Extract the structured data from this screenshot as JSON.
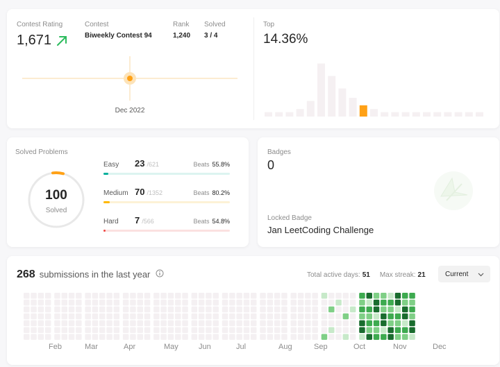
{
  "rating": {
    "label": "Contest Rating",
    "value": "1,671",
    "contest_label": "Contest",
    "contest_value": "Biweekly Contest 94",
    "rank_label": "Rank",
    "rank_value": "1,240",
    "solved_label": "Solved",
    "solved_value": "3 / 4",
    "graph_date": "Dec 2022",
    "top_label": "Top",
    "top_value": "14.36%",
    "histogram_levels": [
      0.07,
      0.07,
      0.07,
      0.12,
      0.25,
      0.85,
      0.65,
      0.45,
      0.3,
      0.18,
      0.12,
      0.07,
      0.07,
      0.07,
      0.07,
      0.07,
      0.07,
      0.07,
      0.07,
      0.07,
      0.07
    ],
    "histogram_highlight_index": 9,
    "colors": {
      "accent": "#ffa116",
      "up": "#2cbb5d"
    }
  },
  "solved": {
    "title": "Solved Problems",
    "total": "100",
    "total_label": "Solved",
    "rows": [
      {
        "name": "Easy",
        "solved": "23",
        "total": "/621",
        "beats_label": "Beats",
        "beats": "55.8%",
        "fill": 0.037,
        "color": "#00af9b",
        "track": "#dcf4f0"
      },
      {
        "name": "Medium",
        "solved": "70",
        "total": "/1352",
        "beats_label": "Beats",
        "beats": "80.2%",
        "fill": 0.052,
        "color": "#ffb800",
        "track": "#fdf2d6"
      },
      {
        "name": "Hard",
        "solved": "7",
        "total": "/566",
        "beats_label": "Beats",
        "beats": "54.8%",
        "fill": 0.012,
        "color": "#ef4743",
        "track": "#fbe1e0"
      }
    ]
  },
  "badges": {
    "title": "Badges",
    "count": "0",
    "locked_label": "Locked Badge",
    "locked_name": "Jan LeetCoding Challenge"
  },
  "submissions": {
    "count": "268",
    "text": "submissions in the last year",
    "active_label": "Total active days:",
    "active_value": "51",
    "streak_label": "Max streak:",
    "streak_value": "21",
    "dropdown": "Current",
    "months": [
      "Feb",
      "Mar",
      "Apr",
      "May",
      "Jun",
      "Jul",
      "Aug",
      "Sep",
      "Oct",
      "Nov",
      "Dec"
    ],
    "colors": {
      "empty": "#f4f0f2",
      "l1": "#c7e9c9",
      "l2": "#7fcf86",
      "l3": "#3daa4f",
      "l4": "#196c2e"
    }
  }
}
